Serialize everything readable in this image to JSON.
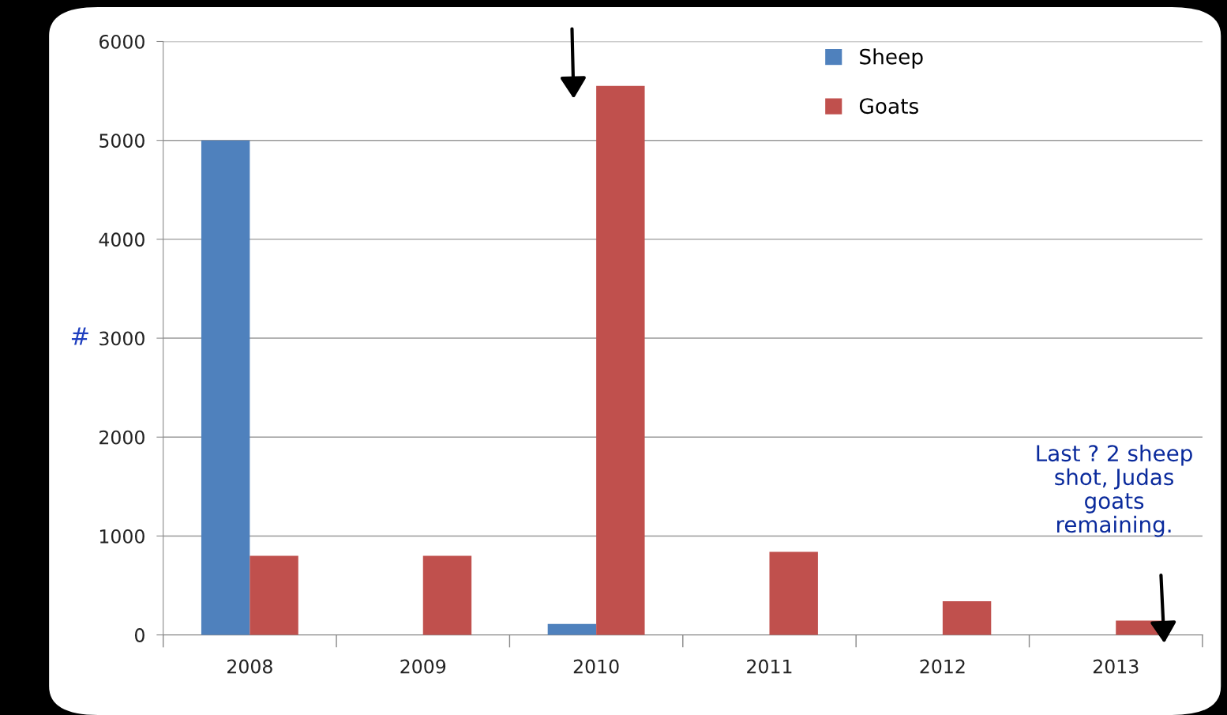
{
  "chart_data": {
    "type": "bar",
    "ylabel": "#",
    "categories": [
      "2008",
      "2009",
      "2010",
      "2011",
      "2012",
      "2013"
    ],
    "series": [
      {
        "name": "Sheep",
        "color": "#4f81bd",
        "values": [
          5000,
          null,
          110,
          null,
          null,
          null
        ]
      },
      {
        "name": "Goats",
        "color": "#c0504d",
        "values": [
          800,
          800,
          5550,
          840,
          340,
          145
        ]
      }
    ],
    "ylim": [
      0,
      6000
    ],
    "yticks": [
      0,
      1000,
      2000,
      3000,
      4000,
      5000,
      6000
    ],
    "grid": "y",
    "legend": "top right",
    "annotations": [
      "Last ? 2 sheep\nshot, Judas\ngoats\nremaining."
    ]
  }
}
